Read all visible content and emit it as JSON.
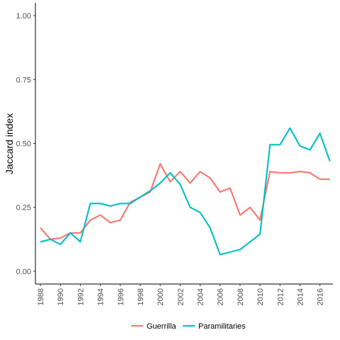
{
  "chart_data": {
    "type": "line",
    "xlabel": "",
    "ylabel": "Jaccard index",
    "xlim": [
      1987.5,
      2017.3
    ],
    "ylim": [
      -0.05,
      1.05
    ],
    "x_ticks": [
      1988,
      1990,
      1992,
      1994,
      1996,
      1998,
      2000,
      2002,
      2004,
      2006,
      2008,
      2010,
      2012,
      2014,
      2016
    ],
    "y_ticks": [
      0.0,
      0.25,
      0.5,
      0.75,
      1.0
    ],
    "y_tick_labels": [
      "0.00",
      "0.25",
      "0.50",
      "0.75",
      "1.00"
    ],
    "grid": false,
    "legend_position": "bottom",
    "x": [
      1988,
      1989,
      1990,
      1991,
      1992,
      1993,
      1994,
      1995,
      1996,
      1997,
      1998,
      1999,
      2000,
      2001,
      2002,
      2003,
      2004,
      2005,
      2006,
      2007,
      2008,
      2009,
      2010,
      2011,
      2012,
      2013,
      2014,
      2015,
      2016,
      2017
    ],
    "series": [
      {
        "name": "Guerrilla",
        "color": "#F8766D",
        "values": [
          0.17,
          0.125,
          0.13,
          0.15,
          0.15,
          0.2,
          0.22,
          0.19,
          0.2,
          0.27,
          0.29,
          0.31,
          0.42,
          0.35,
          0.39,
          0.345,
          0.39,
          0.365,
          0.31,
          0.325,
          0.22,
          0.25,
          0.2,
          0.39,
          0.385,
          0.385,
          0.39,
          0.385,
          0.36,
          0.36
        ]
      },
      {
        "name": "Paramilitaries",
        "color": "#00BFC4",
        "values": [
          0.115,
          0.125,
          0.105,
          0.15,
          0.115,
          0.265,
          0.265,
          0.255,
          0.265,
          0.265,
          0.29,
          0.315,
          0.345,
          0.385,
          0.34,
          0.25,
          0.23,
          0.17,
          0.065,
          0.075,
          0.085,
          0.115,
          0.145,
          0.495,
          0.495,
          0.56,
          0.49,
          0.475,
          0.54,
          0.43
        ]
      }
    ]
  }
}
